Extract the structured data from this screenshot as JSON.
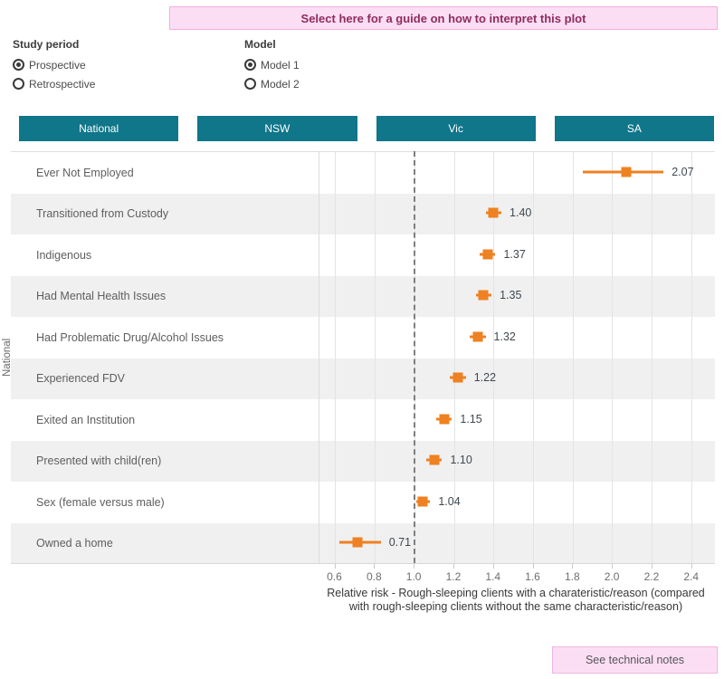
{
  "banner": {
    "label": "Select here for a guide on how to interpret this plot"
  },
  "controls": {
    "study_period": {
      "label": "Study period",
      "options": [
        {
          "label": "Prospective",
          "selected": true
        },
        {
          "label": "Retrospective",
          "selected": false
        }
      ]
    },
    "model": {
      "label": "Model",
      "options": [
        {
          "label": "Model 1",
          "selected": true
        },
        {
          "label": "Model 2",
          "selected": false
        }
      ]
    }
  },
  "tabs": [
    {
      "label": "National",
      "active": true
    },
    {
      "label": "NSW",
      "active": false
    },
    {
      "label": "Vic",
      "active": false
    },
    {
      "label": "SA",
      "active": false
    }
  ],
  "colors": {
    "tab_teal": "#10768a",
    "marker_orange": "#ee8121",
    "banner_pink_bg": "#fcdef4",
    "banner_pink_border": "#f3aede",
    "banner_text": "#8e2c5e",
    "row_alt_gray": "#f0f0f0",
    "reference_line_gray": "#7f7f7f"
  },
  "chart_data": {
    "type": "scatter",
    "subtype": "dot-and-whisker",
    "group_label": "National",
    "categories": [
      "Ever Not Employed",
      "Transitioned from Custody",
      "Indigenous",
      "Had Mental Health Issues",
      "Had Problematic Drug/Alcohol Issues",
      "Experienced FDV",
      "Exited an Institution",
      "Presented with child(ren)",
      "Sex (female versus male)",
      "Owned a home"
    ],
    "series": [
      {
        "name": "Relative risk",
        "values": [
          2.07,
          1.4,
          1.37,
          1.35,
          1.32,
          1.22,
          1.15,
          1.1,
          1.04,
          0.71
        ],
        "labels": [
          "2.07",
          "1.40",
          "1.37",
          "1.35",
          "1.32",
          "1.22",
          "1.15",
          "1.10",
          "1.04",
          "0.71"
        ],
        "ci_low": [
          1.85,
          1.36,
          1.33,
          1.31,
          1.28,
          1.18,
          1.11,
          1.06,
          1.01,
          0.62
        ],
        "ci_high": [
          2.26,
          1.44,
          1.41,
          1.39,
          1.36,
          1.26,
          1.19,
          1.14,
          1.08,
          0.83
        ]
      }
    ],
    "reference_line": 1.0,
    "xticks": [
      0.6,
      0.8,
      1.0,
      1.2,
      1.4,
      1.6,
      1.8,
      2.0,
      2.2,
      2.4
    ],
    "xtick_labels": [
      "0.6",
      "0.8",
      "1.0",
      "1.2",
      "1.4",
      "1.6",
      "1.8",
      "2.0",
      "2.2",
      "2.4"
    ],
    "xlim": [
      0.52,
      2.52
    ],
    "grid": "vertical",
    "legend": "none",
    "marker_color": "#ee8121",
    "xlabel_line1": "Relative risk - Rough-sleeping clients with a charateristic/reason (compared",
    "xlabel_line2": "with rough-sleeping clients without the same characteristic/reason)"
  },
  "footer": {
    "technical_notes_label": "See technical notes"
  }
}
